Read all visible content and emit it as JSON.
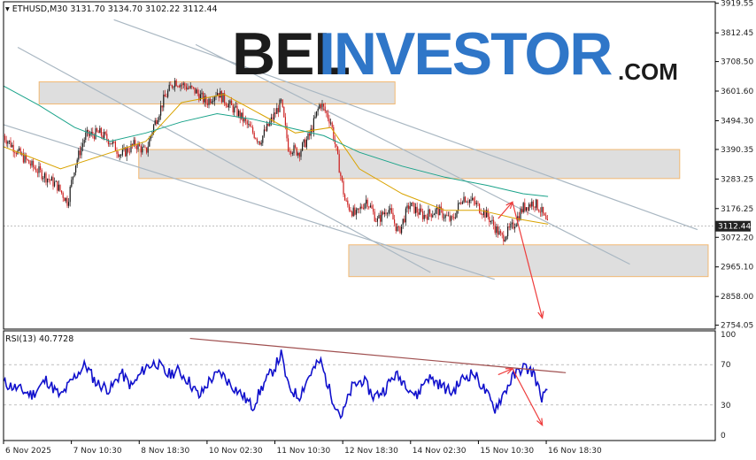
{
  "header": {
    "symbol_text": "ETHUSD,M30",
    "ohlc_text": "3131.70 3134.70 3102.22 3112.44"
  },
  "logo": {
    "part1": "BEL",
    "part2": "INVESTOR",
    "part3": ".COM"
  },
  "colors": {
    "bull": "#1a1a1a",
    "bear": "#cc1f1f",
    "ma_fast": "#d9a300",
    "ma_slow": "#1aa38a",
    "trendline": "#a9b7c2",
    "zone_fill": "#dedede",
    "zone_border": "#f2b872",
    "arrow": "#ee3b3b",
    "rsi_line": "#1010cc",
    "rsi_trend": "#a05050",
    "price_tag": "#222222"
  },
  "chart_data": [
    {
      "type": "candlestick",
      "symbol": "ETHUSD",
      "timeframe": "M30",
      "last_price": 3112.44,
      "last_price_label": "3112.44",
      "ylim": [
        2740,
        3925
      ],
      "y_ticks": [
        "3919.55",
        "3812.45",
        "3708.50",
        "3601.60",
        "3494.30",
        "3390.35",
        "3283.25",
        "3176.25",
        "3072.20",
        "2965.10",
        "2858.00",
        "2754.05"
      ],
      "x_ticks": [
        "6 Nov 2025",
        "7 Nov 10:30",
        "8 Nov 18:30",
        "10 Nov 02:30",
        "11 Nov 10:30",
        "12 Nov 18:30",
        "14 Nov 02:30",
        "15 Nov 10:30",
        "16 Nov 18:30"
      ],
      "price_path": [
        {
          "x": 0,
          "y": 3440
        },
        {
          "x": 0.02,
          "y": 3380
        },
        {
          "x": 0.04,
          "y": 3330
        },
        {
          "x": 0.06,
          "y": 3290
        },
        {
          "x": 0.075,
          "y": 3260
        },
        {
          "x": 0.09,
          "y": 3200
        },
        {
          "x": 0.1,
          "y": 3330
        },
        {
          "x": 0.115,
          "y": 3440
        },
        {
          "x": 0.135,
          "y": 3450
        },
        {
          "x": 0.15,
          "y": 3420
        },
        {
          "x": 0.165,
          "y": 3370
        },
        {
          "x": 0.185,
          "y": 3410
        },
        {
          "x": 0.2,
          "y": 3380
        },
        {
          "x": 0.21,
          "y": 3470
        },
        {
          "x": 0.225,
          "y": 3570
        },
        {
          "x": 0.24,
          "y": 3640
        },
        {
          "x": 0.255,
          "y": 3620
        },
        {
          "x": 0.27,
          "y": 3600
        },
        {
          "x": 0.285,
          "y": 3560
        },
        {
          "x": 0.3,
          "y": 3600
        },
        {
          "x": 0.31,
          "y": 3570
        },
        {
          "x": 0.33,
          "y": 3520
        },
        {
          "x": 0.345,
          "y": 3470
        },
        {
          "x": 0.36,
          "y": 3420
        },
        {
          "x": 0.375,
          "y": 3490
        },
        {
          "x": 0.39,
          "y": 3560
        },
        {
          "x": 0.4,
          "y": 3400
        },
        {
          "x": 0.415,
          "y": 3380
        },
        {
          "x": 0.43,
          "y": 3440
        },
        {
          "x": 0.445,
          "y": 3560
        },
        {
          "x": 0.46,
          "y": 3490
        },
        {
          "x": 0.47,
          "y": 3350
        },
        {
          "x": 0.48,
          "y": 3200
        },
        {
          "x": 0.495,
          "y": 3150
        },
        {
          "x": 0.51,
          "y": 3210
        },
        {
          "x": 0.525,
          "y": 3130
        },
        {
          "x": 0.54,
          "y": 3180
        },
        {
          "x": 0.555,
          "y": 3090
        },
        {
          "x": 0.57,
          "y": 3190
        },
        {
          "x": 0.59,
          "y": 3150
        },
        {
          "x": 0.61,
          "y": 3170
        },
        {
          "x": 0.63,
          "y": 3130
        },
        {
          "x": 0.645,
          "y": 3220
        },
        {
          "x": 0.66,
          "y": 3200
        },
        {
          "x": 0.68,
          "y": 3150
        },
        {
          "x": 0.7,
          "y": 3070
        },
        {
          "x": 0.715,
          "y": 3110
        },
        {
          "x": 0.73,
          "y": 3180
        },
        {
          "x": 0.745,
          "y": 3200
        },
        {
          "x": 0.755,
          "y": 3170
        },
        {
          "x": 0.765,
          "y": 3110
        }
      ],
      "ma_fast_path": [
        {
          "x": 0,
          "y": 3400
        },
        {
          "x": 0.08,
          "y": 3320
        },
        {
          "x": 0.14,
          "y": 3370
        },
        {
          "x": 0.2,
          "y": 3420
        },
        {
          "x": 0.25,
          "y": 3560
        },
        {
          "x": 0.31,
          "y": 3590
        },
        {
          "x": 0.36,
          "y": 3520
        },
        {
          "x": 0.41,
          "y": 3450
        },
        {
          "x": 0.46,
          "y": 3470
        },
        {
          "x": 0.5,
          "y": 3320
        },
        {
          "x": 0.56,
          "y": 3230
        },
        {
          "x": 0.62,
          "y": 3170
        },
        {
          "x": 0.67,
          "y": 3170
        },
        {
          "x": 0.72,
          "y": 3140
        },
        {
          "x": 0.765,
          "y": 3120
        }
      ],
      "ma_slow_path": [
        {
          "x": 0,
          "y": 3620
        },
        {
          "x": 0.05,
          "y": 3550
        },
        {
          "x": 0.1,
          "y": 3470
        },
        {
          "x": 0.15,
          "y": 3420
        },
        {
          "x": 0.2,
          "y": 3450
        },
        {
          "x": 0.25,
          "y": 3490
        },
        {
          "x": 0.3,
          "y": 3520
        },
        {
          "x": 0.35,
          "y": 3500
        },
        {
          "x": 0.4,
          "y": 3470
        },
        {
          "x": 0.45,
          "y": 3440
        },
        {
          "x": 0.5,
          "y": 3380
        },
        {
          "x": 0.56,
          "y": 3330
        },
        {
          "x": 0.62,
          "y": 3290
        },
        {
          "x": 0.68,
          "y": 3260
        },
        {
          "x": 0.73,
          "y": 3230
        },
        {
          "x": 0.765,
          "y": 3220
        }
      ],
      "resistance_zones": [
        {
          "x_from": 0.05,
          "x_to": 0.55,
          "y_low": 3555,
          "y_high": 3635
        },
        {
          "x_from": 0.19,
          "x_to": 0.95,
          "y_low": 3285,
          "y_high": 3390
        },
        {
          "x_from": 0.485,
          "x_to": 0.99,
          "y_low": 2930,
          "y_high": 3045
        }
      ],
      "trendlines": [
        {
          "x1": 0.155,
          "y1": 3860,
          "x2": 0.975,
          "y2": 3100
        },
        {
          "x1": 0.02,
          "y1": 3760,
          "x2": 0.6,
          "y2": 2945
        },
        {
          "x1": 0.0,
          "y1": 3480,
          "x2": 0.69,
          "y2": 2920
        },
        {
          "x1": 0.27,
          "y1": 3770,
          "x2": 0.88,
          "y2": 2975
        }
      ],
      "forecast_arrows": [
        {
          "x1": 0.695,
          "y1": 3140,
          "x2": 0.715,
          "y2": 3200
        },
        {
          "x1": 0.715,
          "y1": 3200,
          "x2": 0.757,
          "y2": 2780
        }
      ]
    },
    {
      "type": "line",
      "indicator": "RSI",
      "title": "RSI(13) 40.7728",
      "ylim": [
        0,
        100
      ],
      "y_ticks": [
        "100",
        "70",
        "30",
        "0"
      ],
      "levels": [
        70,
        30
      ],
      "values": [
        {
          "x": 0,
          "y": 52
        },
        {
          "x": 0.02,
          "y": 46
        },
        {
          "x": 0.04,
          "y": 40
        },
        {
          "x": 0.06,
          "y": 55
        },
        {
          "x": 0.08,
          "y": 38
        },
        {
          "x": 0.1,
          "y": 58
        },
        {
          "x": 0.115,
          "y": 70
        },
        {
          "x": 0.13,
          "y": 52
        },
        {
          "x": 0.15,
          "y": 45
        },
        {
          "x": 0.165,
          "y": 62
        },
        {
          "x": 0.18,
          "y": 48
        },
        {
          "x": 0.2,
          "y": 68
        },
        {
          "x": 0.215,
          "y": 72
        },
        {
          "x": 0.23,
          "y": 60
        },
        {
          "x": 0.245,
          "y": 64
        },
        {
          "x": 0.26,
          "y": 54
        },
        {
          "x": 0.275,
          "y": 38
        },
        {
          "x": 0.29,
          "y": 55
        },
        {
          "x": 0.305,
          "y": 62
        },
        {
          "x": 0.32,
          "y": 50
        },
        {
          "x": 0.335,
          "y": 40
        },
        {
          "x": 0.35,
          "y": 28
        },
        {
          "x": 0.365,
          "y": 50
        },
        {
          "x": 0.38,
          "y": 66
        },
        {
          "x": 0.39,
          "y": 80
        },
        {
          "x": 0.4,
          "y": 48
        },
        {
          "x": 0.415,
          "y": 38
        },
        {
          "x": 0.43,
          "y": 60
        },
        {
          "x": 0.445,
          "y": 74
        },
        {
          "x": 0.46,
          "y": 40
        },
        {
          "x": 0.475,
          "y": 18
        },
        {
          "x": 0.49,
          "y": 48
        },
        {
          "x": 0.505,
          "y": 55
        },
        {
          "x": 0.52,
          "y": 38
        },
        {
          "x": 0.535,
          "y": 45
        },
        {
          "x": 0.55,
          "y": 60
        },
        {
          "x": 0.565,
          "y": 52
        },
        {
          "x": 0.58,
          "y": 38
        },
        {
          "x": 0.595,
          "y": 58
        },
        {
          "x": 0.61,
          "y": 52
        },
        {
          "x": 0.63,
          "y": 42
        },
        {
          "x": 0.645,
          "y": 56
        },
        {
          "x": 0.66,
          "y": 62
        },
        {
          "x": 0.675,
          "y": 46
        },
        {
          "x": 0.69,
          "y": 26
        },
        {
          "x": 0.7,
          "y": 38
        },
        {
          "x": 0.715,
          "y": 57
        },
        {
          "x": 0.73,
          "y": 68
        },
        {
          "x": 0.745,
          "y": 62
        },
        {
          "x": 0.755,
          "y": 38
        },
        {
          "x": 0.765,
          "y": 41
        }
      ],
      "trendline": {
        "x1": 0.262,
        "y1": 96,
        "x2": 0.79,
        "y2": 62
      },
      "forecast_arrows": [
        {
          "x1": 0.695,
          "y1": 60,
          "x2": 0.715,
          "y2": 66
        },
        {
          "x1": 0.715,
          "y1": 66,
          "x2": 0.757,
          "y2": 10
        }
      ]
    }
  ]
}
